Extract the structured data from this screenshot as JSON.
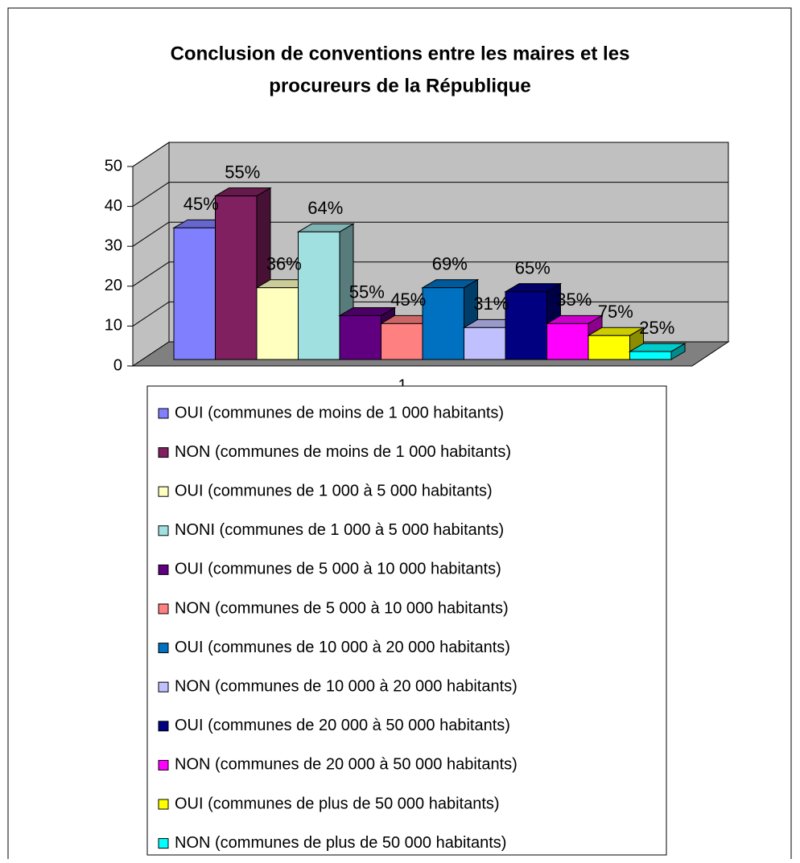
{
  "chart_data": {
    "type": "bar3d",
    "title": [
      "Conclusion de conventions entre les maires et les",
      "procureurs de la République"
    ],
    "categories": [
      "1"
    ],
    "ylim": [
      0,
      50
    ],
    "yticks": [
      0,
      10,
      20,
      30,
      40,
      50
    ],
    "grid": true,
    "legend": "bottom",
    "series": [
      {
        "name": "OUI (communes de moins de 1 000 habitants)",
        "color": "#8080ff",
        "values": [
          33
        ],
        "label": "45%"
      },
      {
        "name": "NON (communes de moins de 1 000 habitants)",
        "color": "#802060",
        "values": [
          41
        ],
        "label": "55%"
      },
      {
        "name": "OUI (communes de 1 000 à 5 000 habitants)",
        "color": "#ffffc0",
        "values": [
          18
        ],
        "label": "36%"
      },
      {
        "name": "NONI (communes de 1 000 à 5 000 habitants)",
        "color": "#a0e0e0",
        "values": [
          32
        ],
        "label": "64%"
      },
      {
        "name": "OUI (communes de 5 000 à 10 000 habitants)",
        "color": "#600080",
        "values": [
          11
        ],
        "label": "55%"
      },
      {
        "name": "NON (communes de 5 000 à 10 000 habitants)",
        "color": "#ff8080",
        "values": [
          9
        ],
        "label": "45%"
      },
      {
        "name": "OUI (communes de 10 000 à 20 000 habitants)",
        "color": "#0070c0",
        "values": [
          18
        ],
        "label": "69%"
      },
      {
        "name": "NON (communes de 10 000 à 20 000 habitants)",
        "color": "#c0c0ff",
        "values": [
          8
        ],
        "label": "31%"
      },
      {
        "name": "OUI (communes de 20 000 à 50 000 habitants)",
        "color": "#000080",
        "values": [
          17
        ],
        "label": "65%"
      },
      {
        "name": "NON (communes de 20 000 à 50 000 habitants)",
        "color": "#ff00ff",
        "values": [
          9
        ],
        "label": "35%"
      },
      {
        "name": "OUI (communes de plus de 50 000 habitants)",
        "color": "#ffff00",
        "values": [
          6
        ],
        "label": "75%"
      },
      {
        "name": "NON (communes de plus de 50 000 habitants)",
        "color": "#00ffff",
        "values": [
          2
        ],
        "label": "25%"
      }
    ]
  }
}
